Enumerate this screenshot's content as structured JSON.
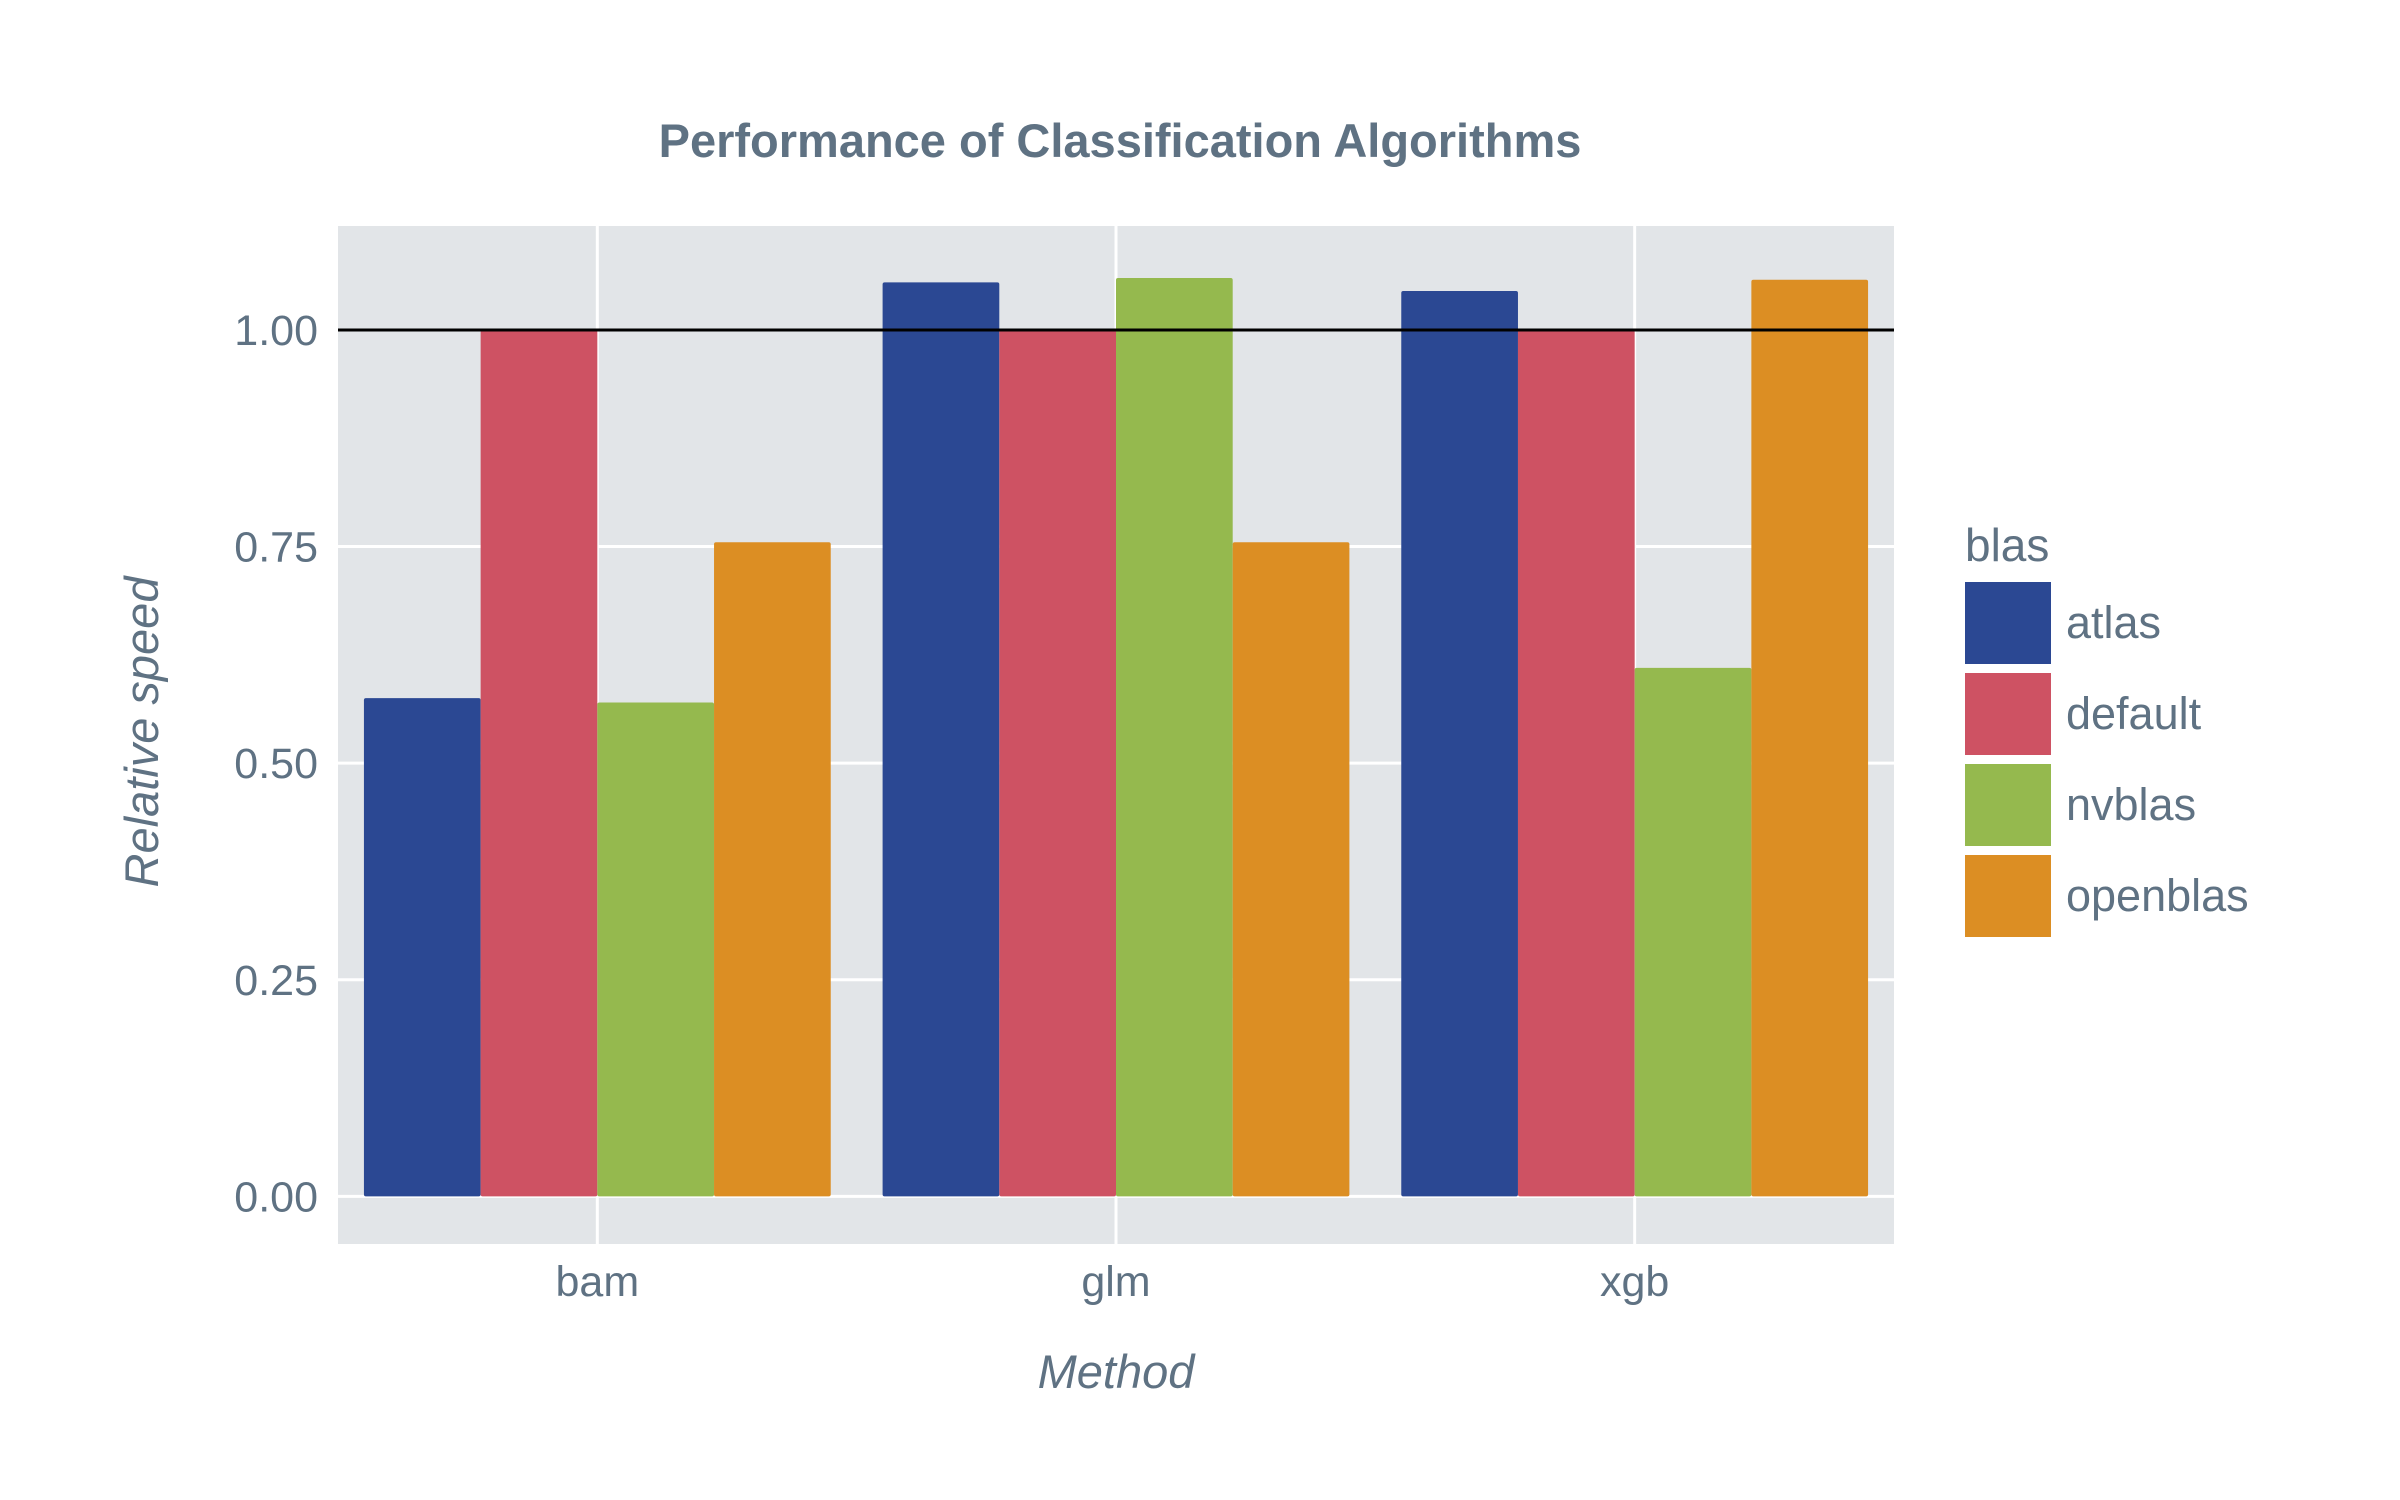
{
  "chart_data": {
    "type": "bar",
    "title": "Performance of Classification Algorithms",
    "xlabel": "Method",
    "ylabel": "Relative speed",
    "categories": [
      "bam",
      "glm",
      "xgb"
    ],
    "series": [
      {
        "name": "atlas",
        "color": "#2b4893",
        "values": [
          0.575,
          1.055,
          1.045
        ]
      },
      {
        "name": "default",
        "color": "#ce5263",
        "values": [
          1.0,
          1.0,
          1.0
        ]
      },
      {
        "name": "nvblas",
        "color": "#95b94e",
        "values": [
          0.57,
          1.06,
          0.61
        ]
      },
      {
        "name": "openblas",
        "color": "#dc8e23",
        "values": [
          0.755,
          0.755,
          1.058
        ]
      }
    ],
    "ylim": [
      -0.055,
      1.12
    ],
    "yticks": [
      {
        "value": 0.0,
        "label": "0.00"
      },
      {
        "value": 0.25,
        "label": "0.25"
      },
      {
        "value": 0.5,
        "label": "0.50"
      },
      {
        "value": 0.75,
        "label": "0.75"
      },
      {
        "value": 1.0,
        "label": "1.00"
      }
    ],
    "reference_line": 1.0,
    "legend": {
      "title": "blas",
      "position": "right"
    },
    "grid": true,
    "background": "#e2e5e8"
  }
}
